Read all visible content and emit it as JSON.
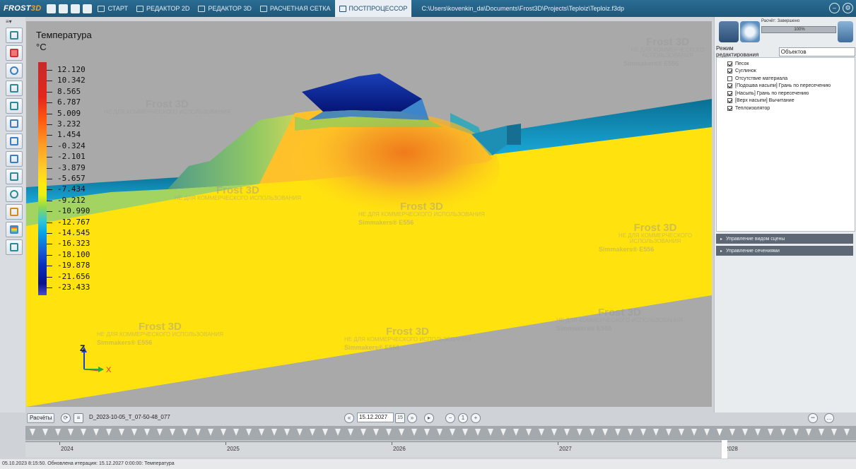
{
  "app": {
    "logo_part1": "FROST",
    "logo_part2": "3D",
    "tabs": [
      "СТАРТ",
      "РЕДАКТОР 2D",
      "РЕДАКТОР 3D",
      "РАСЧЕТНАЯ СЕТКА",
      "ПОСТПРОЦЕССОР"
    ],
    "active_tab": "ПОСТПРОЦЕССОР",
    "project_path": "C:\\Users\\kovenkin_da\\Documents\\Frost3D\\Projects\\Teploiz\\Teploiz.f3dp"
  },
  "legend": {
    "title": "Температура",
    "unit": "°C",
    "values": [
      "12.120",
      "10.342",
      "8.565",
      "6.787",
      "5.009",
      "3.232",
      "1.454",
      "-0.324",
      "-2.101",
      "-3.879",
      "-5.657",
      "-7.434",
      "-9.212",
      "-10.990",
      "-12.767",
      "-14.545",
      "-16.323",
      "-18.100",
      "-19.878",
      "-21.656",
      "-23.433"
    ]
  },
  "axes": {
    "z_label": "Z",
    "x_label": "X"
  },
  "watermark": {
    "title": "Frost 3D",
    "subtitle": "НЕ ДЛЯ КОММЕРЧЕСКОГО ИСПОЛЬЗОВАНИЯ",
    "brand": "Simmakers®",
    "code": "E556"
  },
  "right_panel": {
    "calc_status": "Расчёт: Завершено",
    "progress_label": "100%",
    "progress": 1.0,
    "mode_label": "Режим редактирования",
    "mode_value": "Объектов",
    "objects": [
      {
        "label": "Песок",
        "checked": true
      },
      {
        "label": "Суглинок",
        "checked": true
      },
      {
        "label": "Отсутствие материала",
        "checked": false
      },
      {
        "label": "[Подошва насыпи] Грань по пересечению",
        "checked": true
      },
      {
        "label": "[Насыпь] Грань по пересечению",
        "checked": true
      },
      {
        "label": "[Верх насыпи] Вычитание",
        "checked": true
      },
      {
        "label": "Теплоизолятор",
        "checked": true
      }
    ],
    "sections": [
      "Управление видом сцены",
      "Управление сечениями"
    ]
  },
  "timebar": {
    "calc_button": "Расчёты",
    "dataset_name": "D_2023-10-05_T_07-50-48_077",
    "date": "15.12.2027",
    "calendar_day": "15"
  },
  "timeline": {
    "years": [
      "2024",
      "2025",
      "2026",
      "2027",
      "2028"
    ]
  },
  "status": {
    "text": "05.10.2023 8:15:50. Обновлена итерация: 15.12.2027 0:00:00: Температура"
  },
  "colors": {
    "titlebar": "#1f5879",
    "accent": "#e8a33a",
    "soil_warm": "#ffe10f",
    "insulation_cold": "#0a2a9c",
    "embankment_cool": "#1e9bc4"
  }
}
